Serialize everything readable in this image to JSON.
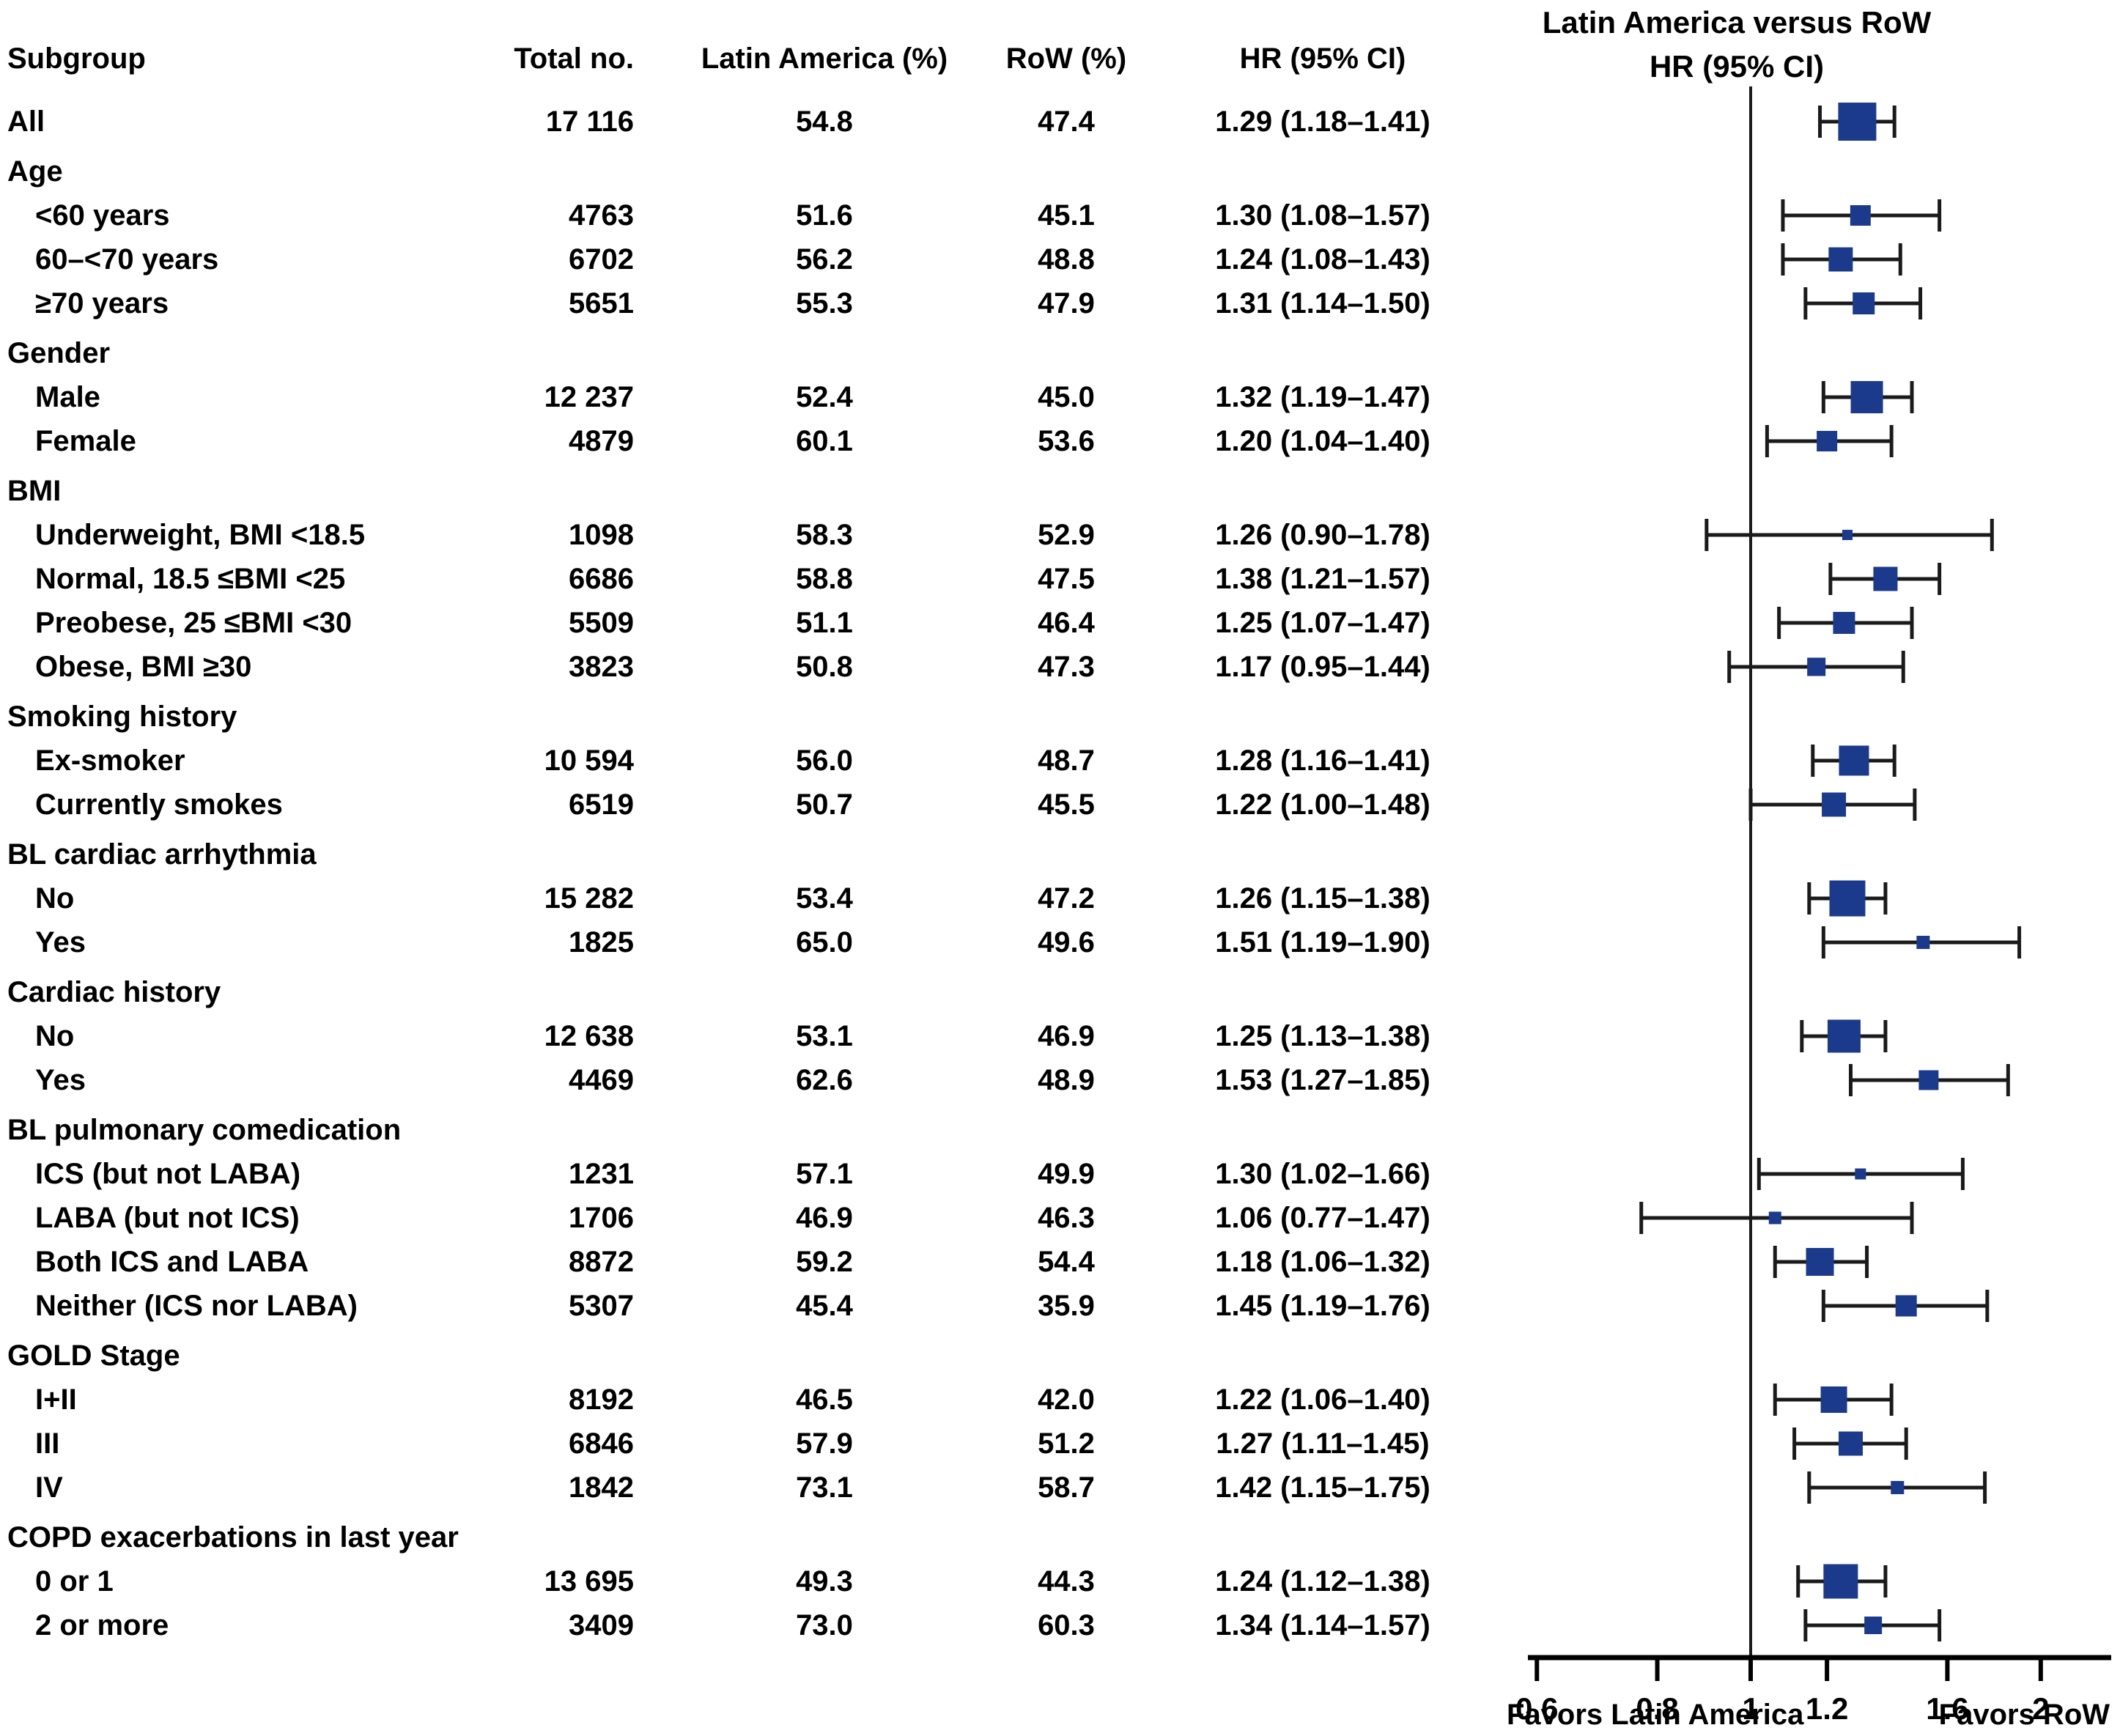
{
  "table": {
    "columns": [
      "Subgroup",
      "Total no.",
      "Latin America (%)",
      "RoW (%)",
      "HR (95% CI)"
    ],
    "rows": [
      {
        "type": "item",
        "indent": false,
        "label": "All",
        "total": "17 116",
        "la": "54.8",
        "row": "47.4",
        "hr": "1.29 (1.18–1.41)"
      },
      {
        "type": "group",
        "label": "Age"
      },
      {
        "type": "item",
        "indent": true,
        "label": "<60 years",
        "total": "4763",
        "la": "51.6",
        "row": "45.1",
        "hr": "1.30 (1.08–1.57)"
      },
      {
        "type": "item",
        "indent": true,
        "label": "60–<70 years",
        "total": "6702",
        "la": "56.2",
        "row": "48.8",
        "hr": "1.24 (1.08–1.43)"
      },
      {
        "type": "item",
        "indent": true,
        "label": "≥70 years",
        "total": "5651",
        "la": "55.3",
        "row": "47.9",
        "hr": "1.31 (1.14–1.50)"
      },
      {
        "type": "group",
        "label": "Gender"
      },
      {
        "type": "item",
        "indent": true,
        "label": "Male",
        "total": "12 237",
        "la": "52.4",
        "row": "45.0",
        "hr": "1.32 (1.19–1.47)"
      },
      {
        "type": "item",
        "indent": true,
        "label": "Female",
        "total": "4879",
        "la": "60.1",
        "row": "53.6",
        "hr": "1.20 (1.04–1.40)"
      },
      {
        "type": "group",
        "label": "BMI"
      },
      {
        "type": "item",
        "indent": true,
        "label": "Underweight, BMI <18.5",
        "total": "1098",
        "la": "58.3",
        "row": "52.9",
        "hr": "1.26 (0.90–1.78)"
      },
      {
        "type": "item",
        "indent": true,
        "label": "Normal, 18.5 ≤BMI <25",
        "total": "6686",
        "la": "58.8",
        "row": "47.5",
        "hr": "1.38 (1.21–1.57)"
      },
      {
        "type": "item",
        "indent": true,
        "label": "Preobese, 25 ≤BMI <30",
        "total": "5509",
        "la": "51.1",
        "row": "46.4",
        "hr": "1.25 (1.07–1.47)"
      },
      {
        "type": "item",
        "indent": true,
        "label": "Obese, BMI ≥30",
        "total": "3823",
        "la": "50.8",
        "row": "47.3",
        "hr": "1.17 (0.95–1.44)"
      },
      {
        "type": "group",
        "label": "Smoking history"
      },
      {
        "type": "item",
        "indent": true,
        "label": "Ex-smoker",
        "total": "10 594",
        "la": "56.0",
        "row": "48.7",
        "hr": "1.28 (1.16–1.41)"
      },
      {
        "type": "item",
        "indent": true,
        "label": "Currently smokes",
        "total": "6519",
        "la": "50.7",
        "row": "45.5",
        "hr": "1.22 (1.00–1.48)"
      },
      {
        "type": "group",
        "label": "BL cardiac arrhythmia"
      },
      {
        "type": "item",
        "indent": true,
        "label": "No",
        "total": "15 282",
        "la": "53.4",
        "row": "47.2",
        "hr": "1.26 (1.15–1.38)"
      },
      {
        "type": "item",
        "indent": true,
        "label": "Yes",
        "total": "1825",
        "la": "65.0",
        "row": "49.6",
        "hr": "1.51 (1.19–1.90)"
      },
      {
        "type": "group",
        "label": "Cardiac history"
      },
      {
        "type": "item",
        "indent": true,
        "label": "No",
        "total": "12 638",
        "la": "53.1",
        "row": "46.9",
        "hr": "1.25 (1.13–1.38)"
      },
      {
        "type": "item",
        "indent": true,
        "label": "Yes",
        "total": "4469",
        "la": "62.6",
        "row": "48.9",
        "hr": "1.53 (1.27–1.85)"
      },
      {
        "type": "group",
        "label": "BL pulmonary comedication"
      },
      {
        "type": "item",
        "indent": true,
        "label": "ICS (but not LABA)",
        "total": "1231",
        "la": "57.1",
        "row": "49.9",
        "hr": "1.30 (1.02–1.66)"
      },
      {
        "type": "item",
        "indent": true,
        "label": "LABA (but not ICS)",
        "total": "1706",
        "la": "46.9",
        "row": "46.3",
        "hr": "1.06 (0.77–1.47)"
      },
      {
        "type": "item",
        "indent": true,
        "label": "Both ICS and LABA",
        "total": "8872",
        "la": "59.2",
        "row": "54.4",
        "hr": "1.18 (1.06–1.32)"
      },
      {
        "type": "item",
        "indent": true,
        "label": "Neither (ICS nor LABA)",
        "total": "5307",
        "la": "45.4",
        "row": "35.9",
        "hr": "1.45 (1.19–1.76)"
      },
      {
        "type": "group",
        "label": "GOLD Stage"
      },
      {
        "type": "item",
        "indent": true,
        "label": "I+II",
        "total": "8192",
        "la": "46.5",
        "row": "42.0",
        "hr": "1.22 (1.06–1.40)"
      },
      {
        "type": "item",
        "indent": true,
        "label": "III",
        "total": "6846",
        "la": "57.9",
        "row": "51.2",
        "hr": "1.27 (1.11–1.45)"
      },
      {
        "type": "item",
        "indent": true,
        "label": "IV",
        "total": "1842",
        "la": "73.1",
        "row": "58.7",
        "hr": "1.42 (1.15–1.75)"
      },
      {
        "type": "group",
        "label": "COPD exacerbations in last year"
      },
      {
        "type": "item",
        "indent": true,
        "label": "0 or 1",
        "total": "13 695",
        "la": "49.3",
        "row": "44.3",
        "hr": "1.24 (1.12–1.38)"
      },
      {
        "type": "item",
        "indent": true,
        "label": "2 or more",
        "total": "3409",
        "la": "73.0",
        "row": "60.3",
        "hr": "1.34 (1.14–1.57)"
      }
    ]
  },
  "plot": {
    "title_line1": "Latin America versus RoW",
    "title_line2": "HR (95% CI)",
    "favors_left": "Favors Latin America",
    "favors_right": "Favors RoW",
    "colors": {
      "square": "#1b3a8c",
      "line": "#1a1a1a",
      "axis": "#000000"
    }
  },
  "chart_data": {
    "type": "scatter",
    "subtype": "forest-plot",
    "title": "Latin America versus RoW HR (95% CI)",
    "xlabel": "HR (95% CI)",
    "x_scale": "log",
    "x_ticks": [
      0.6,
      0.8,
      1,
      1.2,
      1.6,
      2
    ],
    "reference_line": 1,
    "annotation_left": "Favors Latin America",
    "annotation_right": "Favors RoW",
    "points": [
      {
        "subgroup": "All",
        "group": null,
        "total_n": 17116,
        "latin_america_pct": 54.8,
        "row_pct": 47.4,
        "hr": 1.29,
        "ci_lower": 1.18,
        "ci_upper": 1.41
      },
      {
        "subgroup": "<60 years",
        "group": "Age",
        "total_n": 4763,
        "latin_america_pct": 51.6,
        "row_pct": 45.1,
        "hr": 1.3,
        "ci_lower": 1.08,
        "ci_upper": 1.57
      },
      {
        "subgroup": "60–<70 years",
        "group": "Age",
        "total_n": 6702,
        "latin_america_pct": 56.2,
        "row_pct": 48.8,
        "hr": 1.24,
        "ci_lower": 1.08,
        "ci_upper": 1.43
      },
      {
        "subgroup": "≥70 years",
        "group": "Age",
        "total_n": 5651,
        "latin_america_pct": 55.3,
        "row_pct": 47.9,
        "hr": 1.31,
        "ci_lower": 1.14,
        "ci_upper": 1.5
      },
      {
        "subgroup": "Male",
        "group": "Gender",
        "total_n": 12237,
        "latin_america_pct": 52.4,
        "row_pct": 45.0,
        "hr": 1.32,
        "ci_lower": 1.19,
        "ci_upper": 1.47
      },
      {
        "subgroup": "Female",
        "group": "Gender",
        "total_n": 4879,
        "latin_america_pct": 60.1,
        "row_pct": 53.6,
        "hr": 1.2,
        "ci_lower": 1.04,
        "ci_upper": 1.4
      },
      {
        "subgroup": "Underweight, BMI <18.5",
        "group": "BMI",
        "total_n": 1098,
        "latin_america_pct": 58.3,
        "row_pct": 52.9,
        "hr": 1.26,
        "ci_lower": 0.9,
        "ci_upper": 1.78
      },
      {
        "subgroup": "Normal, 18.5 ≤BMI <25",
        "group": "BMI",
        "total_n": 6686,
        "latin_america_pct": 58.8,
        "row_pct": 47.5,
        "hr": 1.38,
        "ci_lower": 1.21,
        "ci_upper": 1.57
      },
      {
        "subgroup": "Preobese, 25 ≤BMI <30",
        "group": "BMI",
        "total_n": 5509,
        "latin_america_pct": 51.1,
        "row_pct": 46.4,
        "hr": 1.25,
        "ci_lower": 1.07,
        "ci_upper": 1.47
      },
      {
        "subgroup": "Obese, BMI ≥30",
        "group": "BMI",
        "total_n": 3823,
        "latin_america_pct": 50.8,
        "row_pct": 47.3,
        "hr": 1.17,
        "ci_lower": 0.95,
        "ci_upper": 1.44
      },
      {
        "subgroup": "Ex-smoker",
        "group": "Smoking history",
        "total_n": 10594,
        "latin_america_pct": 56.0,
        "row_pct": 48.7,
        "hr": 1.28,
        "ci_lower": 1.16,
        "ci_upper": 1.41
      },
      {
        "subgroup": "Currently smokes",
        "group": "Smoking history",
        "total_n": 6519,
        "latin_america_pct": 50.7,
        "row_pct": 45.5,
        "hr": 1.22,
        "ci_lower": 1.0,
        "ci_upper": 1.48
      },
      {
        "subgroup": "No",
        "group": "BL cardiac arrhythmia",
        "total_n": 15282,
        "latin_america_pct": 53.4,
        "row_pct": 47.2,
        "hr": 1.26,
        "ci_lower": 1.15,
        "ci_upper": 1.38
      },
      {
        "subgroup": "Yes",
        "group": "BL cardiac arrhythmia",
        "total_n": 1825,
        "latin_america_pct": 65.0,
        "row_pct": 49.6,
        "hr": 1.51,
        "ci_lower": 1.19,
        "ci_upper": 1.9
      },
      {
        "subgroup": "No",
        "group": "Cardiac history",
        "total_n": 12638,
        "latin_america_pct": 53.1,
        "row_pct": 46.9,
        "hr": 1.25,
        "ci_lower": 1.13,
        "ci_upper": 1.38
      },
      {
        "subgroup": "Yes",
        "group": "Cardiac history",
        "total_n": 4469,
        "latin_america_pct": 62.6,
        "row_pct": 48.9,
        "hr": 1.53,
        "ci_lower": 1.27,
        "ci_upper": 1.85
      },
      {
        "subgroup": "ICS (but not LABA)",
        "group": "BL pulmonary comedication",
        "total_n": 1231,
        "latin_america_pct": 57.1,
        "row_pct": 49.9,
        "hr": 1.3,
        "ci_lower": 1.02,
        "ci_upper": 1.66
      },
      {
        "subgroup": "LABA (but not ICS)",
        "group": "BL pulmonary comedication",
        "total_n": 1706,
        "latin_america_pct": 46.9,
        "row_pct": 46.3,
        "hr": 1.06,
        "ci_lower": 0.77,
        "ci_upper": 1.47
      },
      {
        "subgroup": "Both ICS and LABA",
        "group": "BL pulmonary comedication",
        "total_n": 8872,
        "latin_america_pct": 59.2,
        "row_pct": 54.4,
        "hr": 1.18,
        "ci_lower": 1.06,
        "ci_upper": 1.32
      },
      {
        "subgroup": "Neither (ICS nor LABA)",
        "group": "BL pulmonary comedication",
        "total_n": 5307,
        "latin_america_pct": 45.4,
        "row_pct": 35.9,
        "hr": 1.45,
        "ci_lower": 1.19,
        "ci_upper": 1.76
      },
      {
        "subgroup": "I+II",
        "group": "GOLD Stage",
        "total_n": 8192,
        "latin_america_pct": 46.5,
        "row_pct": 42.0,
        "hr": 1.22,
        "ci_lower": 1.06,
        "ci_upper": 1.4
      },
      {
        "subgroup": "III",
        "group": "GOLD Stage",
        "total_n": 6846,
        "latin_america_pct": 57.9,
        "row_pct": 51.2,
        "hr": 1.27,
        "ci_lower": 1.11,
        "ci_upper": 1.45
      },
      {
        "subgroup": "IV",
        "group": "GOLD Stage",
        "total_n": 1842,
        "latin_america_pct": 73.1,
        "row_pct": 58.7,
        "hr": 1.42,
        "ci_lower": 1.15,
        "ci_upper": 1.75
      },
      {
        "subgroup": "0 or 1",
        "group": "COPD exacerbations in last year",
        "total_n": 13695,
        "latin_america_pct": 49.3,
        "row_pct": 44.3,
        "hr": 1.24,
        "ci_lower": 1.12,
        "ci_upper": 1.38
      },
      {
        "subgroup": "2 or more",
        "group": "COPD exacerbations in last year",
        "total_n": 3409,
        "latin_america_pct": 73.0,
        "row_pct": 60.3,
        "hr": 1.34,
        "ci_lower": 1.14,
        "ci_upper": 1.57
      }
    ]
  }
}
